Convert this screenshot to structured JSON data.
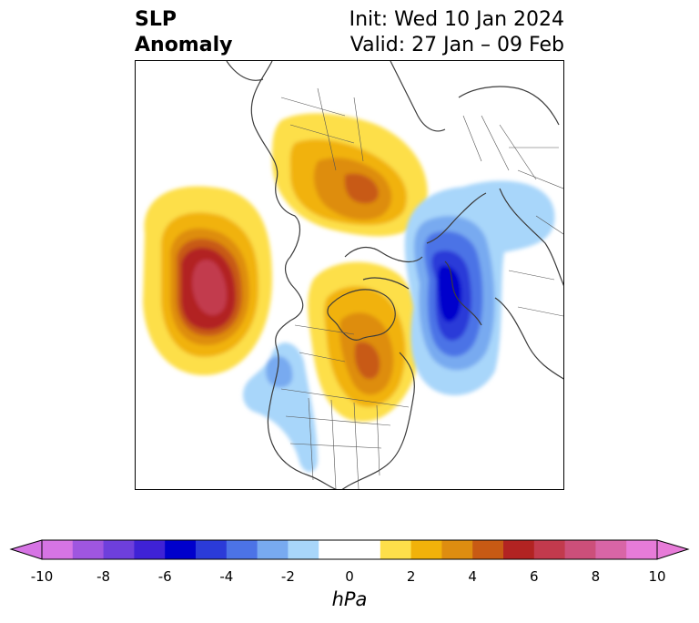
{
  "title": {
    "left_line1": "SLP",
    "left_line2": "Anomaly",
    "right_line1": "Init: Wed 10 Jan 2024",
    "right_line2": "Valid: 27 Jan – 09 Feb"
  },
  "map": {
    "projection": "north-polar-stereographic",
    "features": [
      "coastlines",
      "country borders",
      "US state borders",
      "Canadian province borders"
    ],
    "anomaly_centers": [
      {
        "region": "Northeast Pacific / Gulf of Alaska",
        "sign": "positive",
        "peak_hPa": 8
      },
      {
        "region": "Hudson Bay / central Canada",
        "sign": "positive",
        "peak_hPa": 5
      },
      {
        "region": "Arctic / northern Siberia",
        "sign": "positive",
        "peak_hPa": 5
      },
      {
        "region": "Northern Europe / Scandinavia",
        "sign": "negative",
        "peak_hPa": -7
      },
      {
        "region": "Off US West Coast",
        "sign": "negative",
        "peak_hPa": -2
      }
    ]
  },
  "colorbar": {
    "unit": "hPa",
    "extend": "both",
    "tick_labels": [
      "-10",
      "-8",
      "-6",
      "-4",
      "-2",
      "0",
      "2",
      "4",
      "6",
      "8",
      "10"
    ],
    "colors": {
      "below_min": "#d674e4",
      "levels": [
        "#d674e4",
        "#9f56e0",
        "#6e3fdc",
        "#3f22d6",
        "#0000cc",
        "#2b3bd8",
        "#4c73e6",
        "#78aaf0",
        "#a8d6fa",
        "#ffffff",
        "#ffffff",
        "#fddf4a",
        "#f1b20a",
        "#de8d10",
        "#c85a14",
        "#b22322",
        "#c23a4d",
        "#cc4f7a",
        "#d865a6",
        "#e77bd8"
      ],
      "above_max": "#e77bd8"
    }
  }
}
